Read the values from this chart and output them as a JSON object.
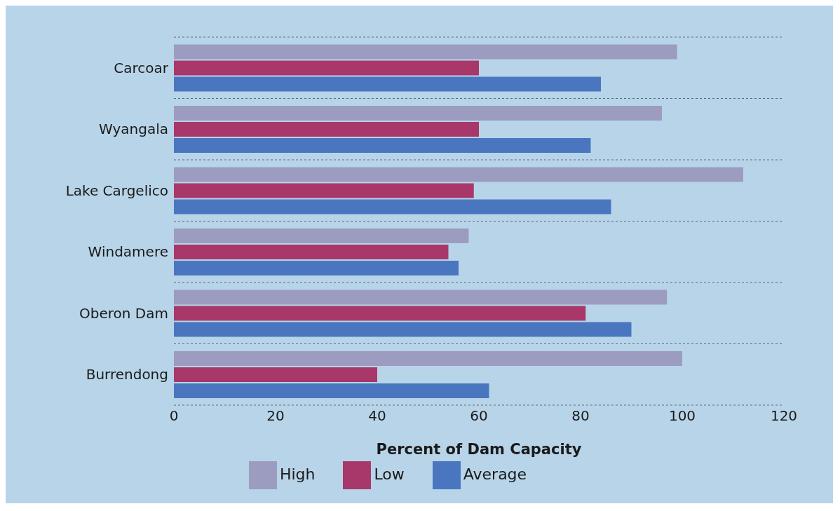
{
  "chart_data": {
    "type": "bar",
    "orientation": "horizontal",
    "xlabel": "Percent of Dam Capacity",
    "categories": [
      "Carcoar",
      "Wyangala",
      "Lake Cargelico",
      "Windamere",
      "Oberon Dam",
      "Burrendong"
    ],
    "series": [
      {
        "name": "High",
        "color": "#9c9cc0",
        "values": [
          99,
          96,
          112,
          58,
          97,
          100
        ]
      },
      {
        "name": "Low",
        "color": "#a8386a",
        "values": [
          60,
          60,
          59,
          54,
          81,
          40
        ]
      },
      {
        "name": "Average",
        "color": "#4a76c0",
        "values": [
          84,
          82,
          86,
          56,
          90,
          62
        ]
      }
    ],
    "xlim": [
      0,
      120
    ],
    "xticks": [
      0,
      20,
      40,
      60,
      80,
      100,
      120
    ],
    "grid": "y",
    "legend": "bottom"
  }
}
